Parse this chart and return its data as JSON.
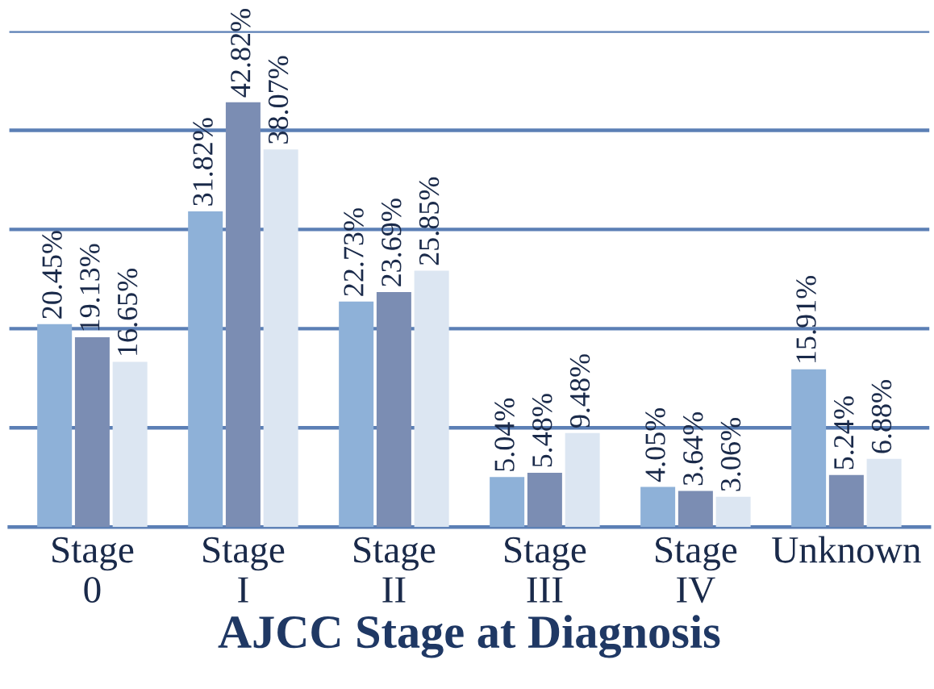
{
  "chart_data": {
    "type": "bar",
    "xlabel": "AJCC Stage at Diagnosis",
    "categories": [
      "Stage\n0",
      "Stage\nI",
      "Stage\nII",
      "Stage\nIII",
      "Stage\nIV",
      "Unknown"
    ],
    "series": [
      {
        "color": "#8eb1d8",
        "values": [
          20.45,
          31.82,
          22.73,
          5.04,
          4.05,
          15.91
        ],
        "value_labels": [
          "20.45%",
          "31.82%",
          "22.73%",
          "5.04%",
          "4.05%",
          "15.91%"
        ]
      },
      {
        "color": "#7b8db3",
        "values": [
          19.13,
          42.82,
          23.69,
          5.48,
          3.64,
          5.24
        ],
        "value_labels": [
          "19.13%",
          "42.82%",
          "23.69%",
          "5.48%",
          "3.64%",
          "5.24%"
        ]
      },
      {
        "color": "#dce6f2",
        "values": [
          16.65,
          38.07,
          25.85,
          9.48,
          3.06,
          6.88
        ],
        "value_labels": [
          "16.65%",
          "38.07%",
          "25.85%",
          "9.48%",
          "3.06%",
          "6.88%"
        ]
      }
    ],
    "ylim": [
      0,
      50
    ],
    "yticks": [
      {
        "value": 0,
        "label": null
      },
      {
        "value": 10,
        "label": null
      },
      {
        "value": 20,
        "label": null
      },
      {
        "value": 30,
        "label": null
      },
      {
        "value": 40,
        "label": null
      },
      {
        "value": 50,
        "label": null
      }
    ],
    "grid": "y",
    "tick_labels": "x"
  }
}
